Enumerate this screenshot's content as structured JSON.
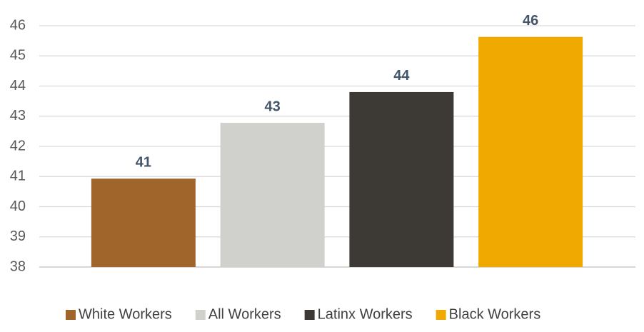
{
  "chart_data": {
    "type": "bar",
    "categories": [
      "White Workers",
      "All Workers",
      "Latinx Workers",
      "Black Workers"
    ],
    "values": [
      40.93,
      42.78,
      43.8,
      45.63
    ],
    "value_labels": [
      "41",
      "43",
      "44",
      "46"
    ],
    "colors": [
      "#a0652a",
      "#d0d0cc",
      "#3d3935",
      "#f0a900"
    ],
    "ylim": [
      38,
      46
    ],
    "yticks": [
      38,
      39,
      40,
      41,
      42,
      43,
      44,
      45,
      46
    ],
    "grid": true,
    "legend": "bottom"
  }
}
